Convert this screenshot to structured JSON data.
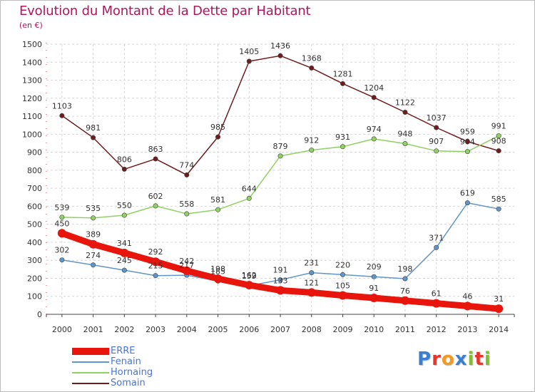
{
  "header": {
    "title": "Evolution du Montant de la Dette par Habitant",
    "subtitle": "(en €)"
  },
  "logo": {
    "text": "Proxiti",
    "letters": [
      "P",
      "r",
      "o",
      "x",
      "i",
      "t",
      "i"
    ],
    "colors": [
      "#3a7fd0",
      "#e8352b",
      "#f29a1f",
      "#3a7fd0",
      "#84bc2e",
      "#e8352b",
      "#84bc2e"
    ]
  },
  "chart_data": {
    "type": "line",
    "title": "Evolution du Montant de la Dette par Habitant",
    "subtitle": "(en €)",
    "x": [
      "2000",
      "2001",
      "2002",
      "2003",
      "2004",
      "2005",
      "2006",
      "2007",
      "2008",
      "2009",
      "2010",
      "2011",
      "2012",
      "2013",
      "2014"
    ],
    "ylim": [
      0,
      1500
    ],
    "yticks": [
      0,
      100,
      200,
      300,
      400,
      500,
      600,
      700,
      800,
      900,
      1000,
      1100,
      1200,
      1300,
      1400,
      1500
    ],
    "grid": true,
    "legend_position": "bottom-left",
    "series": [
      {
        "name": "ERRE",
        "color": "#e8150d",
        "values": [
          450,
          389,
          341,
          292,
          242,
          198,
          162,
          133,
          121,
          105,
          91,
          76,
          61,
          46,
          31
        ],
        "labels": [
          "450",
          "389",
          "341",
          "292",
          "242",
          "198",
          "162",
          "133",
          "121",
          "105",
          "91",
          "76",
          "61",
          "46",
          "31"
        ]
      },
      {
        "name": "Fenain",
        "color": "#5f95c9",
        "values": [
          302,
          274,
          245,
          215,
          217,
          185,
          159,
          191,
          231,
          220,
          209,
          198,
          371,
          619,
          585
        ],
        "labels": [
          "302",
          "274",
          "245",
          "215",
          "217",
          "185",
          "159",
          "191",
          "231",
          "220",
          "209",
          "198",
          "371",
          "619",
          "585"
        ]
      },
      {
        "name": "Hornaing",
        "color": "#8fd163",
        "values": [
          539,
          535,
          550,
          602,
          558,
          581,
          644,
          879,
          912,
          931,
          974,
          948,
          907,
          904,
          991
        ],
        "labels": [
          "539",
          "535",
          "550",
          "602",
          "558",
          "581",
          "644",
          "879",
          "912",
          "931",
          "974",
          "948",
          "907",
          "904",
          "991"
        ]
      },
      {
        "name": "Somain",
        "color": "#6e1c1c",
        "values": [
          1103,
          981,
          806,
          863,
          774,
          985,
          1405,
          1436,
          1368,
          1281,
          1204,
          1122,
          1037,
          959,
          908
        ],
        "labels": [
          "1103",
          "981",
          "806",
          "863",
          "774",
          "985",
          "1405",
          "1436",
          "1368",
          "1281",
          "1204",
          "1122",
          "1037",
          "959",
          "908"
        ]
      }
    ]
  }
}
